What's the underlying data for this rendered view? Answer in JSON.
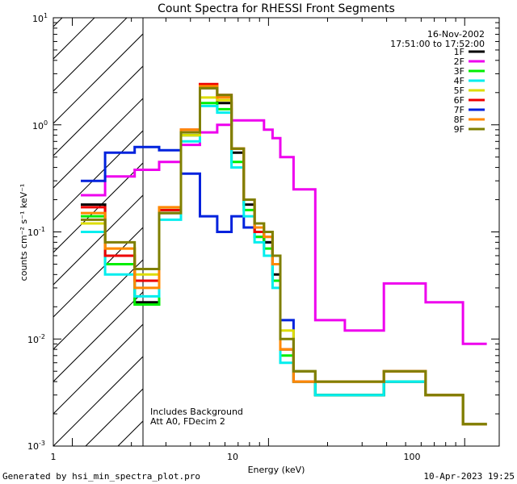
{
  "chart_data": {
    "type": "line",
    "title": "Count Spectra for RHESSI Front Segments",
    "xlabel": "Energy (keV)",
    "ylabel": "counts cm⁻² s⁻¹ keV⁻¹",
    "xscale": "log",
    "yscale": "log",
    "xlim": [
      0.8,
      150
    ],
    "ylim": [
      0.001,
      10
    ],
    "x_ticks": [
      {
        "value": 1,
        "label": "1"
      },
      {
        "value": 10,
        "label": "10"
      },
      {
        "value": 100,
        "label": "100"
      }
    ],
    "y_ticks": [
      {
        "value": 0.001,
        "base": "10",
        "exp": "-3"
      },
      {
        "value": 0.01,
        "base": "10",
        "exp": "-2"
      },
      {
        "value": 0.1,
        "base": "10",
        "exp": "-1"
      },
      {
        "value": 1,
        "base": "10",
        "exp": "0"
      },
      {
        "value": 10,
        "base": "10",
        "exp": "1"
      }
    ],
    "excluded_region": {
      "from": 0.8,
      "to": 3,
      "note": "hatched"
    },
    "date": "16-Nov-2002",
    "time_range": "17:51:00 to 17:52:00",
    "annotations": [
      "Includes Background",
      "Att A0, FDecim 2"
    ],
    "series": [
      {
        "name": "1F",
        "color": "#000000"
      },
      {
        "name": "2F",
        "color": "#ee00ee"
      },
      {
        "name": "3F",
        "color": "#00ee00"
      },
      {
        "name": "4F",
        "color": "#00eeee"
      },
      {
        "name": "5F",
        "color": "#dddd00"
      },
      {
        "name": "6F",
        "color": "#ee0000"
      },
      {
        "name": "7F",
        "color": "#0022dd"
      },
      {
        "name": "8F",
        "color": "#ff8800"
      },
      {
        "name": "9F",
        "color": "#7f7f00"
      }
    ],
    "segment_values": {
      "x": [
        1.2,
        1.8,
        2.4,
        3.2,
        4.0,
        5.0,
        6.0,
        7.0,
        8.0,
        9.0,
        10.0,
        11.0,
        12.0,
        15.0,
        20.0,
        30.0,
        50.0,
        80.0,
        120.0
      ],
      "1F": [
        0.18,
        0.06,
        0.022,
        0.15,
        0.8,
        2.2,
        1.6,
        0.55,
        0.18,
        0.1,
        0.08,
        0.04,
        0.008,
        0.004,
        0.003,
        0.003,
        0.004,
        0.003,
        0.0016
      ],
      "2F": [
        0.22,
        0.33,
        0.38,
        0.45,
        0.65,
        0.85,
        1.0,
        1.1,
        1.1,
        1.1,
        0.9,
        0.75,
        0.5,
        0.25,
        0.015,
        0.012,
        0.033,
        0.022,
        0.009
      ],
      "3F": [
        0.14,
        0.05,
        0.021,
        0.16,
        0.8,
        1.6,
        1.4,
        0.45,
        0.16,
        0.09,
        0.07,
        0.035,
        0.007,
        0.004,
        0.003,
        0.003,
        0.004,
        0.003,
        0.0016
      ],
      "4F": [
        0.1,
        0.04,
        0.025,
        0.13,
        0.7,
        1.5,
        1.3,
        0.4,
        0.14,
        0.08,
        0.06,
        0.03,
        0.006,
        0.004,
        0.003,
        0.003,
        0.004,
        0.003,
        0.0016
      ],
      "5F": [
        0.12,
        0.07,
        0.04,
        0.16,
        0.8,
        1.8,
        1.7,
        0.6,
        0.2,
        0.12,
        0.1,
        0.06,
        0.012,
        0.005,
        0.004,
        0.004,
        0.005,
        0.003,
        0.0016
      ],
      "6F": [
        0.17,
        0.06,
        0.035,
        0.16,
        0.9,
        2.4,
        1.9,
        0.6,
        0.2,
        0.1,
        0.09,
        0.05,
        0.008,
        0.004,
        0.004,
        0.004,
        0.005,
        0.003,
        0.0016
      ],
      "7F": [
        0.3,
        0.55,
        0.62,
        0.58,
        0.35,
        0.14,
        0.1,
        0.14,
        0.11,
        0.09,
        0.08,
        0.06,
        0.015,
        0.005,
        0.003,
        0.003,
        0.004,
        0.003,
        0.0016
      ],
      "8F": [
        0.15,
        0.07,
        0.03,
        0.17,
        0.9,
        2.3,
        1.8,
        0.6,
        0.2,
        0.11,
        0.09,
        0.05,
        0.008,
        0.004,
        0.004,
        0.004,
        0.005,
        0.003,
        0.0016
      ],
      "9F": [
        0.13,
        0.08,
        0.045,
        0.15,
        0.85,
        2.2,
        1.9,
        0.6,
        0.2,
        0.12,
        0.1,
        0.06,
        0.01,
        0.005,
        0.004,
        0.004,
        0.005,
        0.003,
        0.0016
      ]
    }
  },
  "footer": {
    "generated": "Generated by hsi_min_spectra_plot.pro",
    "timestamp": "10-Apr-2023 19:25"
  }
}
